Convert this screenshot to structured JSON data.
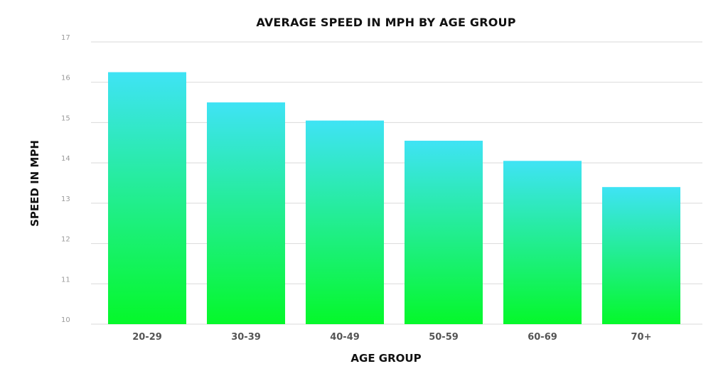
{
  "chart_data": {
    "type": "bar",
    "title": "AVERAGE SPEED IN MPH BY AGE GROUP",
    "xlabel": "AGE GROUP",
    "ylabel": "SPEED IN MPH",
    "categories": [
      "20-29",
      "30-39",
      "40-49",
      "50-59",
      "60-69",
      "70+"
    ],
    "values": [
      16.25,
      15.5,
      15.05,
      14.55,
      14.05,
      13.4
    ],
    "ylim": [
      10,
      17
    ],
    "yticks": [
      "10",
      "11",
      "12",
      "13",
      "14",
      "15",
      "16",
      "17"
    ],
    "grid": true,
    "colors": {
      "bar_top": "#3fe3f5",
      "bar_bottom": "#05f82a",
      "grid": "#d9d9d9"
    }
  }
}
